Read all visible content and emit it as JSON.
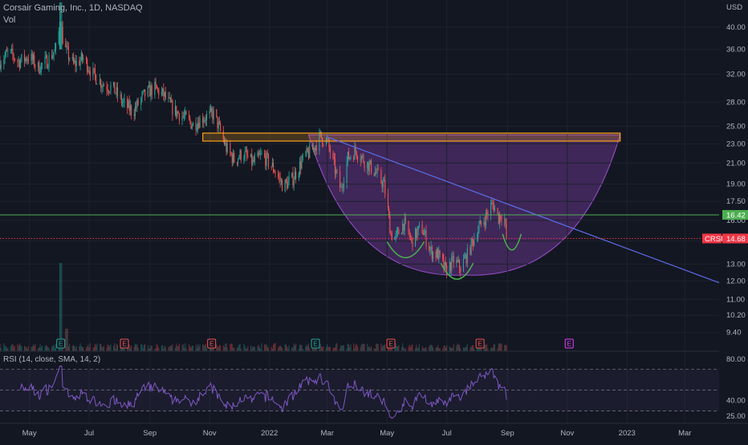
{
  "header": {
    "title": "Corsair Gaming, Inc., 1D, NASDAQ",
    "vol_label": "Vol",
    "currency": "USD"
  },
  "rsi_panel": {
    "label": "RSI (14, close, SMA, 14, 2)",
    "ticks": [
      80.0,
      40.0,
      25.0
    ],
    "ylim": [
      18,
      86
    ]
  },
  "chart_data": {
    "type": "candlestick",
    "title": "Corsair Gaming, Inc., 1D, NASDAQ",
    "scale": "log",
    "ylim": [
      8.6,
      45.5
    ],
    "price_ticks": [
      "40.00",
      "36.00",
      "32.00",
      "28.00",
      "25.00",
      "23.00",
      "21.00",
      "19.00",
      "17.50",
      "16.00",
      "14.50",
      "13.00",
      "12.00",
      "11.00",
      "10.20",
      "9.40"
    ],
    "x_ticks": [
      "May",
      "Jul",
      "Sep",
      "Nov",
      "2022",
      "Mar",
      "May",
      "Jul",
      "Sep",
      "Nov",
      "2023",
      "Mar"
    ],
    "x_range": [
      "2021-04-01",
      "2023-04-05"
    ],
    "last_date": "2022-08-31",
    "price_path": [
      [
        "2021-04-01",
        34.0
      ],
      [
        "2021-04-10",
        35.5
      ],
      [
        "2021-04-20",
        34.0
      ],
      [
        "2021-05-01",
        34.8
      ],
      [
        "2021-05-10",
        33.0
      ],
      [
        "2021-05-20",
        34.2
      ],
      [
        "2021-05-28",
        36.0
      ],
      [
        "2021-06-02",
        41.0
      ],
      [
        "2021-06-05",
        36.5
      ],
      [
        "2021-06-15",
        33.5
      ],
      [
        "2021-06-25",
        34.5
      ],
      [
        "2021-07-05",
        32.0
      ],
      [
        "2021-07-15",
        30.5
      ],
      [
        "2021-07-25",
        30.0
      ],
      [
        "2021-08-05",
        27.8
      ],
      [
        "2021-08-15",
        26.8
      ],
      [
        "2021-08-25",
        28.8
      ],
      [
        "2021-09-05",
        30.0
      ],
      [
        "2021-09-15",
        29.0
      ],
      [
        "2021-09-25",
        27.0
      ],
      [
        "2021-10-05",
        26.2
      ],
      [
        "2021-10-15",
        25.2
      ],
      [
        "2021-10-25",
        26.0
      ],
      [
        "2021-11-05",
        26.5
      ],
      [
        "2021-11-10",
        25.0
      ],
      [
        "2021-11-18",
        22.5
      ],
      [
        "2021-11-26",
        21.3
      ],
      [
        "2021-12-05",
        22.0
      ],
      [
        "2021-12-15",
        21.0
      ],
      [
        "2021-12-25",
        21.8
      ],
      [
        "2022-01-05",
        20.5
      ],
      [
        "2022-01-15",
        18.8
      ],
      [
        "2022-01-25",
        19.5
      ],
      [
        "2022-02-05",
        21.5
      ],
      [
        "2022-02-15",
        22.5
      ],
      [
        "2022-02-22",
        23.8
      ],
      [
        "2022-03-01",
        23.2
      ],
      [
        "2022-03-10",
        20.0
      ],
      [
        "2022-03-15",
        18.5
      ],
      [
        "2022-03-22",
        21.5
      ],
      [
        "2022-03-30",
        22.3
      ],
      [
        "2022-04-10",
        21.0
      ],
      [
        "2022-04-20",
        20.0
      ],
      [
        "2022-04-28",
        18.9
      ],
      [
        "2022-05-05",
        15.0
      ],
      [
        "2022-05-10",
        14.7
      ],
      [
        "2022-05-18",
        15.8
      ],
      [
        "2022-05-26",
        14.5
      ],
      [
        "2022-06-05",
        15.5
      ],
      [
        "2022-06-15",
        13.8
      ],
      [
        "2022-06-22",
        13.6
      ],
      [
        "2022-06-30",
        12.6
      ],
      [
        "2022-07-08",
        13.2
      ],
      [
        "2022-07-15",
        12.8
      ],
      [
        "2022-07-22",
        13.6
      ],
      [
        "2022-08-01",
        15.2
      ],
      [
        "2022-08-10",
        16.3
      ],
      [
        "2022-08-17",
        17.3
      ],
      [
        "2022-08-23",
        16.2
      ],
      [
        "2022-08-28",
        16.7
      ],
      [
        "2022-08-31",
        14.68
      ]
    ],
    "events": [
      {
        "date": "2021-06-02",
        "label": "E",
        "type": "positive"
      },
      {
        "date": "2021-08-06",
        "label": "E",
        "type": "negative"
      },
      {
        "date": "2021-11-03",
        "label": "E",
        "type": "negative"
      },
      {
        "date": "2022-02-17",
        "label": "E",
        "type": "positive"
      },
      {
        "date": "2022-05-05",
        "label": "E",
        "type": "negative"
      },
      {
        "date": "2022-08-04",
        "label": "E",
        "type": "negative"
      },
      {
        "date": "2022-11-03",
        "label": "E",
        "type": "upcoming"
      }
    ],
    "annotations": {
      "resistance_zone": {
        "x_start": "2021-10-25",
        "x_end": "2022-12-25",
        "y_low": 23.3,
        "y_high": 24.2
      },
      "trendline": {
        "x1": "2022-02-28",
        "y1": 23.8,
        "x2": "2023-04-05",
        "y2": 11.9
      },
      "support_level": {
        "value": 16.42,
        "label": "16.42"
      },
      "last_price": {
        "value": 14.68,
        "label": "14.68",
        "symbol": "CRSR"
      },
      "cup_shape": {
        "x_start": "2022-02-10",
        "x_end": "2022-12-25",
        "top": 24.0,
        "bottom": 12.35
      },
      "left_shoulder": {
        "x_start": "2022-05-01",
        "x_end": "2022-06-08",
        "bottom": 13.4
      },
      "bottom_arc": {
        "x_start": "2022-06-25",
        "x_end": "2022-07-28",
        "bottom": 12.1
      },
      "right_shoulder": {
        "x_start": "2022-08-27",
        "x_end": "2022-09-15",
        "bottom": 13.9
      }
    }
  },
  "colors": {
    "background": "#131722",
    "up": "#26a69a",
    "down": "#ef5350",
    "cup_fill": "#7b3fa6",
    "zone_border": "#f7a21b",
    "trendline": "#5d6dea",
    "support": "#4caf50",
    "last_price": "#f23645",
    "rsi": "#7e57c2",
    "shoulders": "#4caf50"
  }
}
